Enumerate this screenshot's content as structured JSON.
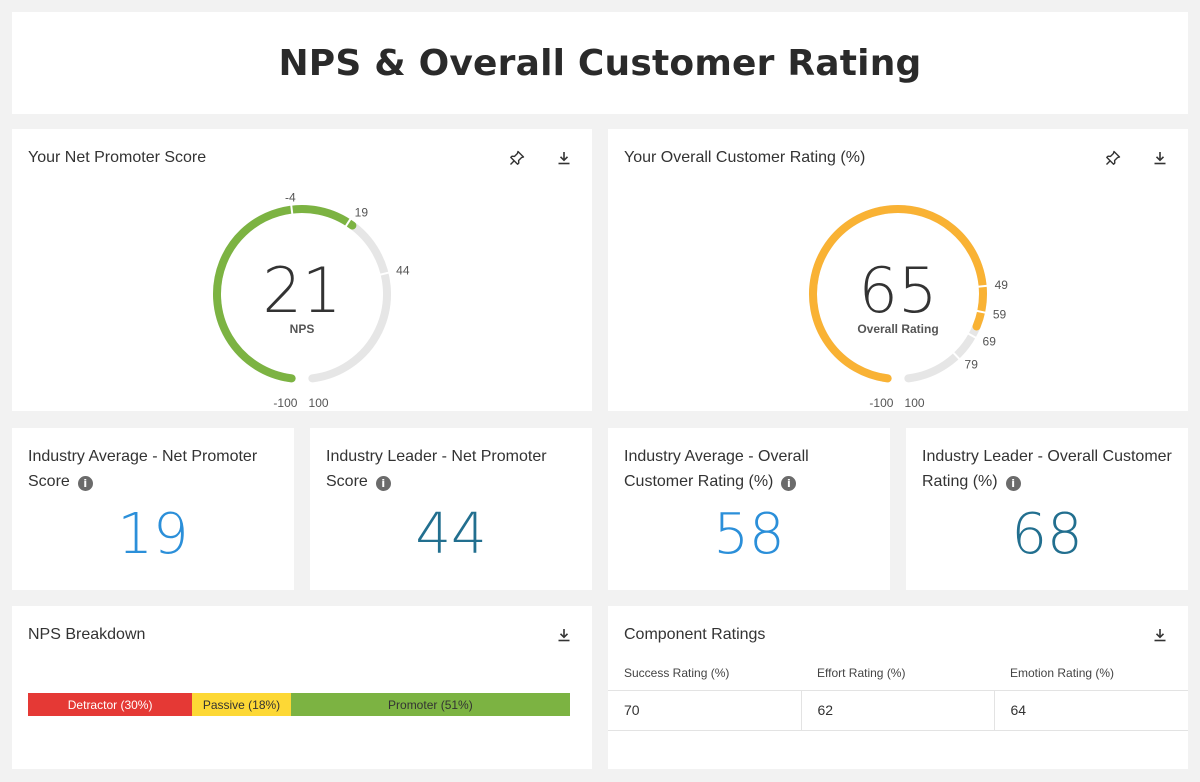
{
  "page": {
    "title": "NPS & Overall Customer Rating"
  },
  "nps_card": {
    "title": "Your Net Promoter Score",
    "value": "21",
    "label": "NPS",
    "min": -100,
    "max": 100,
    "ticks": [
      "-100",
      "-4",
      "19",
      "44",
      "100"
    ],
    "marks": [
      -4,
      19,
      44
    ],
    "color": "#7cb342"
  },
  "rating_card": {
    "title": "Your Overall Customer Rating (%)",
    "value": "65",
    "label": "Overall Rating",
    "min": -100,
    "max": 100,
    "ticks": [
      "-100",
      "49",
      "59",
      "69",
      "79",
      "100"
    ],
    "marks": [
      49,
      59,
      69,
      79
    ],
    "color": "#f9b234"
  },
  "icons": {
    "pin": "pin-icon",
    "download": "download-icon",
    "info": "info-icon"
  },
  "stats": [
    {
      "title": "Industry Average - Net Promoter Score",
      "value": "19",
      "color": "#2b8fd9"
    },
    {
      "title": "Industry Leader - Net Promoter Score",
      "value": "44",
      "color": "#226f8f"
    },
    {
      "title": "Industry Average - Overall Customer Rating (%)",
      "value": "58",
      "color": "#2b8fd9"
    },
    {
      "title": "Industry Leader - Overall Customer Rating (%)",
      "value": "68",
      "color": "#226f8f"
    }
  ],
  "breakdown": {
    "title": "NPS Breakdown",
    "segments": [
      {
        "label": "Detractor (30%)",
        "share": 30,
        "color": "#e53935",
        "text_color": "#ffffff"
      },
      {
        "label": "Passive (18%)",
        "share": 18,
        "color": "#fdd835",
        "text_color": "#333333"
      },
      {
        "label": "Promoter (51%)",
        "share": 51,
        "color": "#7cb342",
        "text_color": "#333333"
      }
    ]
  },
  "components": {
    "title": "Component Ratings",
    "headers": [
      "Success Rating (%)",
      "Effort Rating (%)",
      "Emotion Rating (%)"
    ],
    "row": [
      "70",
      "62",
      "64"
    ]
  }
}
